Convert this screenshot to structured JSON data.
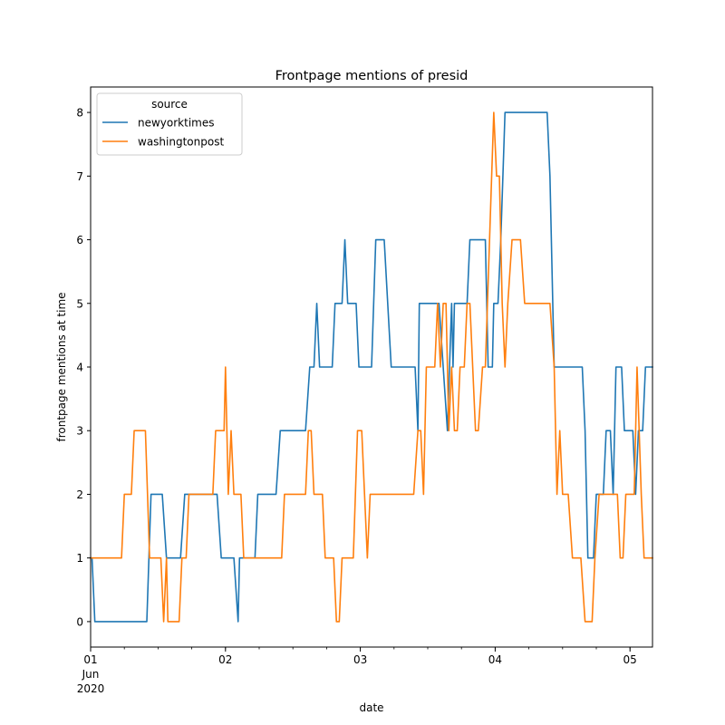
{
  "chart_data": {
    "type": "line",
    "title": "Frontpage mentions of presid",
    "xlabel": "date",
    "ylabel": "frontpage mentions at time",
    "xlim": [
      "2020-06-01 00:00",
      "2020-06-05 04:00"
    ],
    "ylim": [
      -0.4,
      8.4
    ],
    "yticks": [
      0,
      1,
      2,
      3,
      4,
      5,
      6,
      7,
      8
    ],
    "xticks": [
      {
        "value": "2020-06-01 00:00",
        "label": "01",
        "sublabel": "Jun",
        "sublabel2": "2020"
      },
      {
        "value": "2020-06-02 00:00",
        "label": "02"
      },
      {
        "value": "2020-06-03 00:00",
        "label": "03"
      },
      {
        "value": "2020-06-04 00:00",
        "label": "04"
      },
      {
        "value": "2020-06-05 00:00",
        "label": "05"
      }
    ],
    "grid": false,
    "legend": {
      "title": "source",
      "placement": "top-left"
    },
    "series": [
      {
        "name": "newyorktimes",
        "color": "#1f77b4",
        "points": [
          [
            "2020-06-01 00:15",
            1
          ],
          [
            "2020-06-01 00:45",
            0
          ],
          [
            "2020-06-01 10:00",
            0
          ],
          [
            "2020-06-01 10:45",
            2
          ],
          [
            "2020-06-01 12:45",
            2
          ],
          [
            "2020-06-01 13:30",
            1
          ],
          [
            "2020-06-01 16:00",
            1
          ],
          [
            "2020-06-01 16:45",
            2
          ],
          [
            "2020-06-01 22:30",
            2
          ],
          [
            "2020-06-01 23:15",
            1
          ],
          [
            "2020-06-02 01:30",
            1
          ],
          [
            "2020-06-02 02:15",
            0
          ],
          [
            "2020-06-02 02:30",
            1
          ],
          [
            "2020-06-02 05:15",
            1
          ],
          [
            "2020-06-02 05:45",
            2
          ],
          [
            "2020-06-02 09:00",
            2
          ],
          [
            "2020-06-02 09:45",
            3
          ],
          [
            "2020-06-02 14:15",
            3
          ],
          [
            "2020-06-02 15:00",
            4
          ],
          [
            "2020-06-02 15:45",
            4
          ],
          [
            "2020-06-02 16:15",
            5
          ],
          [
            "2020-06-02 16:45",
            4
          ],
          [
            "2020-06-02 19:00",
            4
          ],
          [
            "2020-06-02 19:30",
            5
          ],
          [
            "2020-06-02 20:45",
            5
          ],
          [
            "2020-06-02 21:15",
            6
          ],
          [
            "2020-06-02 21:45",
            5
          ],
          [
            "2020-06-02 23:15",
            5
          ],
          [
            "2020-06-02 23:45",
            4
          ],
          [
            "2020-06-03 02:00",
            4
          ],
          [
            "2020-06-03 02:45",
            6
          ],
          [
            "2020-06-03 04:15",
            6
          ],
          [
            "2020-06-03 05:30",
            4
          ],
          [
            "2020-06-03 09:45",
            4
          ],
          [
            "2020-06-03 10:15",
            3
          ],
          [
            "2020-06-03 10:30",
            5
          ],
          [
            "2020-06-03 14:00",
            5
          ],
          [
            "2020-06-03 14:45",
            4
          ],
          [
            "2020-06-03 15:30",
            3
          ],
          [
            "2020-06-03 16:15",
            5
          ],
          [
            "2020-06-03 16:30",
            4
          ],
          [
            "2020-06-03 16:45",
            5
          ],
          [
            "2020-06-03 19:00",
            5
          ],
          [
            "2020-06-03 19:30",
            6
          ],
          [
            "2020-06-03 22:15",
            6
          ],
          [
            "2020-06-03 22:45",
            4
          ],
          [
            "2020-06-03 23:30",
            4
          ],
          [
            "2020-06-03 23:45",
            5
          ],
          [
            "2020-06-04 00:30",
            5
          ],
          [
            "2020-06-04 01:00",
            6
          ],
          [
            "2020-06-04 01:45",
            8
          ],
          [
            "2020-06-04 09:15",
            8
          ],
          [
            "2020-06-04 09:45",
            7
          ],
          [
            "2020-06-04 10:30",
            4
          ],
          [
            "2020-06-04 15:30",
            4
          ],
          [
            "2020-06-04 16:00",
            3
          ],
          [
            "2020-06-04 16:30",
            1
          ],
          [
            "2020-06-04 17:30",
            1
          ],
          [
            "2020-06-04 18:00",
            2
          ],
          [
            "2020-06-04 19:15",
            2
          ],
          [
            "2020-06-04 19:45",
            3
          ],
          [
            "2020-06-04 20:30",
            3
          ],
          [
            "2020-06-04 21:00",
            2
          ],
          [
            "2020-06-04 21:30",
            4
          ],
          [
            "2020-06-04 22:30",
            4
          ],
          [
            "2020-06-04 23:00",
            3
          ],
          [
            "2020-06-05 00:30",
            3
          ],
          [
            "2020-06-05 01:00",
            2
          ],
          [
            "2020-06-05 01:30",
            3
          ],
          [
            "2020-06-05 02:15",
            3
          ],
          [
            "2020-06-05 02:45",
            4
          ],
          [
            "2020-06-05 04:00",
            4
          ]
        ]
      },
      {
        "name": "washingtonpost",
        "color": "#ff7f0e",
        "points": [
          [
            "2020-06-01 00:00",
            1
          ],
          [
            "2020-06-01 05:30",
            1
          ],
          [
            "2020-06-01 06:00",
            2
          ],
          [
            "2020-06-01 07:15",
            2
          ],
          [
            "2020-06-01 07:45",
            3
          ],
          [
            "2020-06-01 09:45",
            3
          ],
          [
            "2020-06-01 10:30",
            1
          ],
          [
            "2020-06-01 12:30",
            1
          ],
          [
            "2020-06-01 13:00",
            0
          ],
          [
            "2020-06-01 13:30",
            1
          ],
          [
            "2020-06-01 13:45",
            0
          ],
          [
            "2020-06-01 15:45",
            0
          ],
          [
            "2020-06-01 16:15",
            1
          ],
          [
            "2020-06-01 17:00",
            1
          ],
          [
            "2020-06-01 17:30",
            2
          ],
          [
            "2020-06-01 21:45",
            2
          ],
          [
            "2020-06-01 22:15",
            3
          ],
          [
            "2020-06-01 23:45",
            3
          ],
          [
            "2020-06-02 00:00",
            4
          ],
          [
            "2020-06-02 00:30",
            2
          ],
          [
            "2020-06-02 01:00",
            3
          ],
          [
            "2020-06-02 01:30",
            2
          ],
          [
            "2020-06-02 02:45",
            2
          ],
          [
            "2020-06-02 03:15",
            1
          ],
          [
            "2020-06-02 10:00",
            1
          ],
          [
            "2020-06-02 10:30",
            2
          ],
          [
            "2020-06-02 14:15",
            2
          ],
          [
            "2020-06-02 14:45",
            3
          ],
          [
            "2020-06-02 15:15",
            3
          ],
          [
            "2020-06-02 15:45",
            2
          ],
          [
            "2020-06-02 17:15",
            2
          ],
          [
            "2020-06-02 17:45",
            1
          ],
          [
            "2020-06-02 19:15",
            1
          ],
          [
            "2020-06-02 19:45",
            0
          ],
          [
            "2020-06-02 20:15",
            0
          ],
          [
            "2020-06-02 20:45",
            1
          ],
          [
            "2020-06-02 22:45",
            1
          ],
          [
            "2020-06-02 23:30",
            3
          ],
          [
            "2020-06-03 00:15",
            3
          ],
          [
            "2020-06-03 00:45",
            2
          ],
          [
            "2020-06-03 01:15",
            1
          ],
          [
            "2020-06-03 01:45",
            2
          ],
          [
            "2020-06-03 09:30",
            2
          ],
          [
            "2020-06-03 10:15",
            3
          ],
          [
            "2020-06-03 10:45",
            3
          ],
          [
            "2020-06-03 11:15",
            2
          ],
          [
            "2020-06-03 11:45",
            4
          ],
          [
            "2020-06-03 13:15",
            4
          ],
          [
            "2020-06-03 13:45",
            5
          ],
          [
            "2020-06-03 14:15",
            4
          ],
          [
            "2020-06-03 14:45",
            5
          ],
          [
            "2020-06-03 15:15",
            5
          ],
          [
            "2020-06-03 15:45",
            3
          ],
          [
            "2020-06-03 16:15",
            4
          ],
          [
            "2020-06-03 16:45",
            3
          ],
          [
            "2020-06-03 17:15",
            3
          ],
          [
            "2020-06-03 17:45",
            4
          ],
          [
            "2020-06-03 18:30",
            4
          ],
          [
            "2020-06-03 19:00",
            5
          ],
          [
            "2020-06-03 19:30",
            5
          ],
          [
            "2020-06-03 20:00",
            4
          ],
          [
            "2020-06-03 20:30",
            3
          ],
          [
            "2020-06-03 21:00",
            3
          ],
          [
            "2020-06-03 21:45",
            4
          ],
          [
            "2020-06-03 22:15",
            4
          ],
          [
            "2020-06-03 23:45",
            8
          ],
          [
            "2020-06-04 00:15",
            7
          ],
          [
            "2020-06-04 00:45",
            7
          ],
          [
            "2020-06-04 01:15",
            5
          ],
          [
            "2020-06-04 01:45",
            4
          ],
          [
            "2020-06-04 02:15",
            5
          ],
          [
            "2020-06-04 03:00",
            6
          ],
          [
            "2020-06-04 04:30",
            6
          ],
          [
            "2020-06-04 05:15",
            5
          ],
          [
            "2020-06-04 09:45",
            5
          ],
          [
            "2020-06-04 10:30",
            4
          ],
          [
            "2020-06-04 11:00",
            2
          ],
          [
            "2020-06-04 11:30",
            3
          ],
          [
            "2020-06-04 12:00",
            2
          ],
          [
            "2020-06-04 13:00",
            2
          ],
          [
            "2020-06-04 13:45",
            1
          ],
          [
            "2020-06-04 15:15",
            1
          ],
          [
            "2020-06-04 16:00",
            0
          ],
          [
            "2020-06-04 17:15",
            0
          ],
          [
            "2020-06-04 17:45",
            1
          ],
          [
            "2020-06-04 18:30",
            2
          ],
          [
            "2020-06-04 21:45",
            2
          ],
          [
            "2020-06-04 22:15",
            1
          ],
          [
            "2020-06-04 22:45",
            1
          ],
          [
            "2020-06-04 23:15",
            2
          ],
          [
            "2020-06-05 00:45",
            2
          ],
          [
            "2020-06-05 01:15",
            4
          ],
          [
            "2020-06-05 02:00",
            2
          ],
          [
            "2020-06-05 02:30",
            1
          ],
          [
            "2020-06-05 04:00",
            1
          ]
        ]
      }
    ]
  }
}
